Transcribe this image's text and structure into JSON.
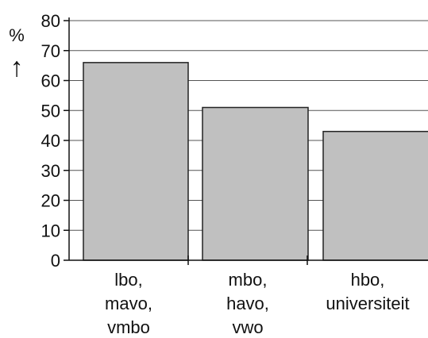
{
  "chart_data": {
    "type": "bar",
    "categories": [
      [
        "lbo,",
        "mavo,",
        "vmbo"
      ],
      [
        "mbo,",
        "havo,",
        "vwo"
      ],
      [
        "hbo,",
        "universiteit"
      ]
    ],
    "values": [
      66,
      51,
      43
    ],
    "ylabel": "%",
    "ylabel_arrow": "↑",
    "ylim": [
      0,
      80
    ],
    "yticks": [
      "0",
      "10",
      "20",
      "30",
      "40",
      "50",
      "60",
      "70",
      "80"
    ],
    "grid": true,
    "colors": {
      "bar_fill": "#c0c0c0",
      "bar_stroke": "#222222",
      "grid": "#555555",
      "axis": "#111111"
    }
  }
}
